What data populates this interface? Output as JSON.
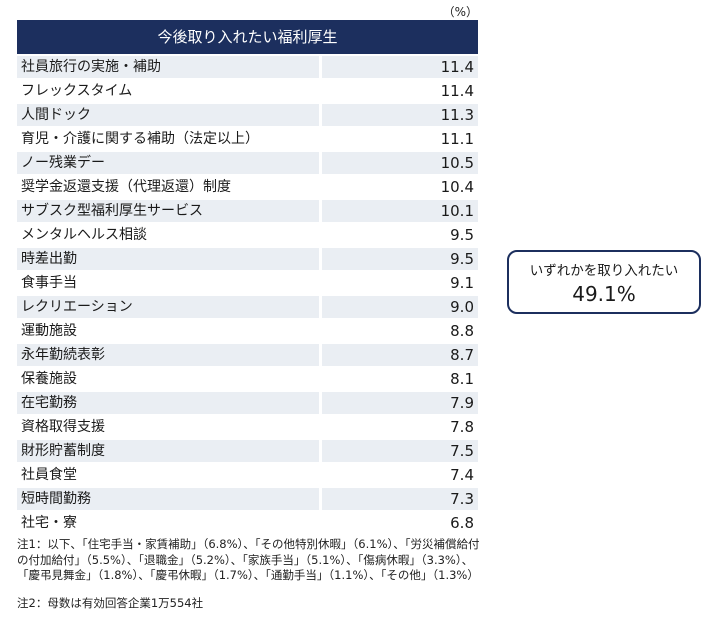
{
  "unit_label": "（%）",
  "table": {
    "header": "今後取り入れたい福利厚生",
    "rows": [
      {
        "label": "社員旅行の実施・補助",
        "value": "11.4"
      },
      {
        "label": "フレックスタイム",
        "value": "11.4"
      },
      {
        "label": "人間ドック",
        "value": "11.3"
      },
      {
        "label": "育児・介護に関する補助（法定以上）",
        "value": "11.1"
      },
      {
        "label": "ノー残業デー",
        "value": "10.5"
      },
      {
        "label": "奨学金返還支援（代理返還）制度",
        "value": "10.4"
      },
      {
        "label": "サブスク型福利厚生サービス",
        "value": "10.1"
      },
      {
        "label": "メンタルヘルス相談",
        "value": "9.5"
      },
      {
        "label": "時差出勤",
        "value": "9.5"
      },
      {
        "label": "食事手当",
        "value": "9.1"
      },
      {
        "label": "レクリエーション",
        "value": "9.0"
      },
      {
        "label": "運動施設",
        "value": "8.8"
      },
      {
        "label": "永年勤続表彰",
        "value": "8.7"
      },
      {
        "label": "保養施設",
        "value": "8.1"
      },
      {
        "label": "在宅勤務",
        "value": "7.9"
      },
      {
        "label": "資格取得支援",
        "value": "7.8"
      },
      {
        "label": "財形貯蓄制度",
        "value": "7.5"
      },
      {
        "label": "社員食堂",
        "value": "7.4"
      },
      {
        "label": "短時間勤務",
        "value": "7.3"
      },
      {
        "label": "社宅・寮",
        "value": "6.8"
      }
    ]
  },
  "callout": {
    "label": "いずれかを取り入れたい",
    "value": "49.1%"
  },
  "notes": {
    "note1_line1": "注1：以下、「住宅手当・家賃補助」（6.8%）、「その他特別休暇」（6.1%）、「労災補償給付",
    "note1_line2": "の付加給付」（5.5%）、「退職金」（5.2%）、「家族手当」（5.1%）、「傷病休暇」（3.3%）、",
    "note1_line3": "「慶弔見舞金」（1.8%）、「慶弔休暇」（1.7%）、「通勤手当」（1.1%）、「その他」（1.3%）",
    "note2": "注2：母数は有効回答企業1万554社"
  }
}
